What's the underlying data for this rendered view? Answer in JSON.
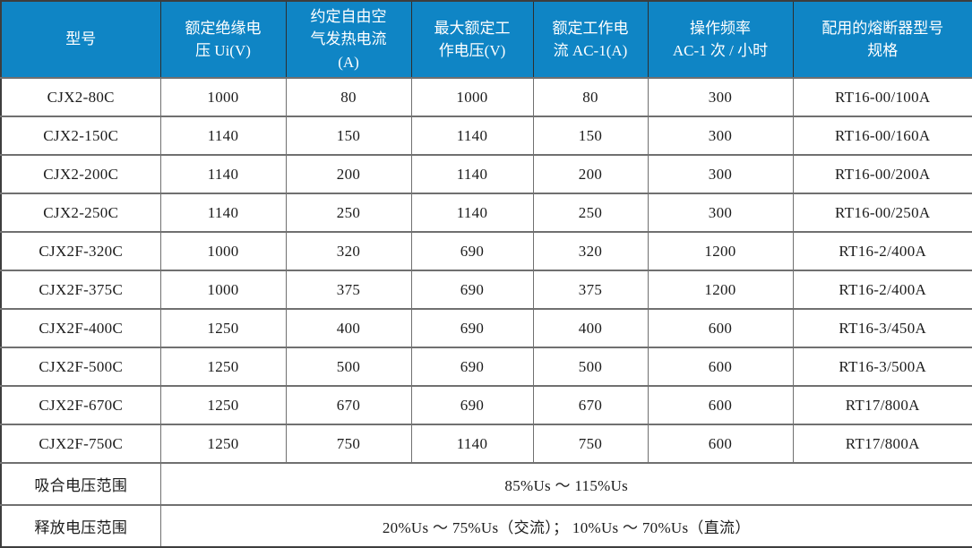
{
  "colors": {
    "header_bg": "#0f85c5",
    "header_text": "#ffffff",
    "border_outer": "#3d3d3d",
    "border_header": "#2e2e2e",
    "border_inner": "#707070",
    "body_text": "#1c1c1c"
  },
  "table": {
    "headers": [
      "型号",
      "额定绝缘电\n压 Ui(V)",
      "约定自由空\n气发热电流\n(A)",
      "最大额定工\n作电压(V)",
      "额定工作电\n流 AC-1(A)",
      "操作频率\nAC-1 次 / 小时",
      "配用的熔断器型号\n规格"
    ],
    "rows": [
      [
        "CJX2-80C",
        "1000",
        "80",
        "1000",
        "80",
        "300",
        "RT16-00/100A"
      ],
      [
        "CJX2-150C",
        "1140",
        "150",
        "1140",
        "150",
        "300",
        "RT16-00/160A"
      ],
      [
        "CJX2-200C",
        "1140",
        "200",
        "1140",
        "200",
        "300",
        "RT16-00/200A"
      ],
      [
        "CJX2-250C",
        "1140",
        "250",
        "1140",
        "250",
        "300",
        "RT16-00/250A"
      ],
      [
        "CJX2F-320C",
        "1000",
        "320",
        "690",
        "320",
        "1200",
        "RT16-2/400A"
      ],
      [
        "CJX2F-375C",
        "1000",
        "375",
        "690",
        "375",
        "1200",
        "RT16-2/400A"
      ],
      [
        "CJX2F-400C",
        "1250",
        "400",
        "690",
        "400",
        "600",
        "RT16-3/450A"
      ],
      [
        "CJX2F-500C",
        "1250",
        "500",
        "690",
        "500",
        "600",
        "RT16-3/500A"
      ],
      [
        "CJX2F-670C",
        "1250",
        "670",
        "690",
        "670",
        "600",
        "RT17/800A"
      ],
      [
        "CJX2F-750C",
        "1250",
        "750",
        "1140",
        "750",
        "600",
        "RT17/800A"
      ]
    ],
    "footer_rows": [
      {
        "label": "吸合电压范围",
        "value": "85%Us ～ 115%Us"
      },
      {
        "label": "释放电压范围",
        "value": "20%Us ～ 75%Us（交流）； 10%Us ～ 70%Us（直流）"
      }
    ]
  }
}
